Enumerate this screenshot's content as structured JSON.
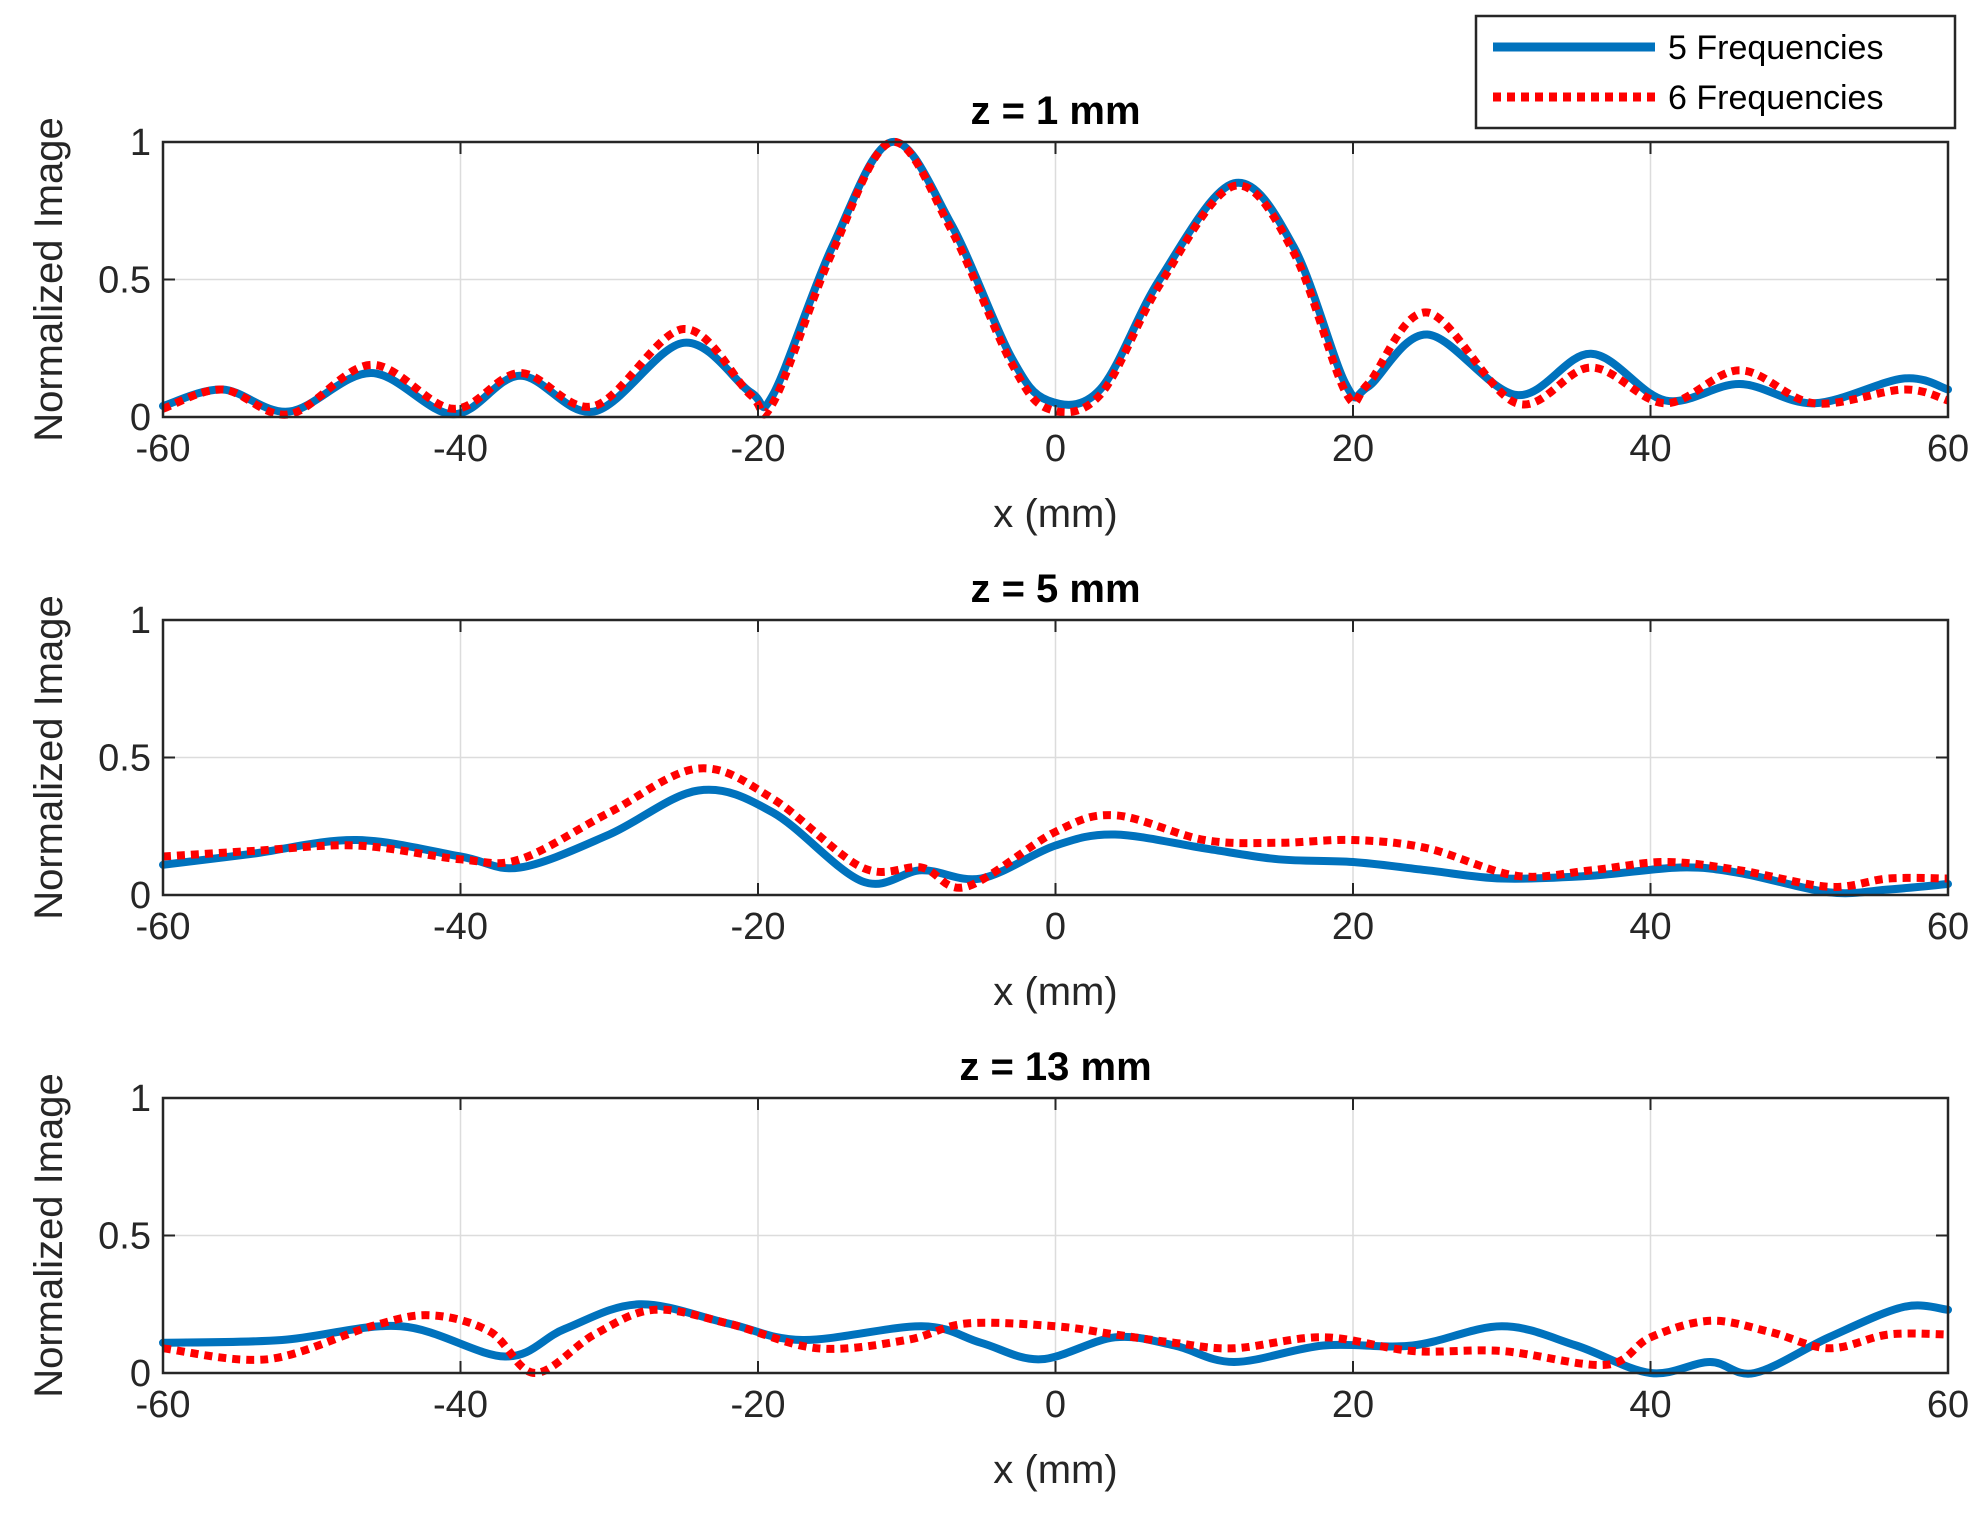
{
  "legend": {
    "location": "top-right",
    "entries": [
      {
        "label": "5 Frequencies",
        "color": "#0072BD",
        "style": "solid"
      },
      {
        "label": "6 Frequencies",
        "color": "#FF0000",
        "style": "dotted"
      }
    ]
  },
  "chart_data": [
    {
      "type": "line",
      "title": "z = 1 mm",
      "xlabel": "x (mm)",
      "ylabel": "Normalized Image",
      "xlim": [
        -60,
        60
      ],
      "ylim": [
        0,
        1
      ],
      "xticks": [
        "-60",
        "-40",
        "-20",
        "0",
        "20",
        "40",
        "60"
      ],
      "yticks": [
        "0",
        "0.5",
        "1"
      ],
      "grid": true,
      "series": [
        {
          "name": "5 Frequencies",
          "color": "#0072BD",
          "style": "solid",
          "x": [
            -60,
            -56,
            -51.5,
            -46,
            -40.5,
            -36,
            -31,
            -25,
            -20.5,
            -19,
            -15,
            -11,
            -7,
            -3,
            -0.5,
            3,
            7,
            12,
            16,
            19.5,
            21,
            25,
            31,
            36,
            41,
            46,
            51,
            57,
            60
          ],
          "y": [
            0.04,
            0.1,
            0.02,
            0.16,
            0.01,
            0.15,
            0.02,
            0.27,
            0.09,
            0.08,
            0.62,
            1.0,
            0.7,
            0.22,
            0.06,
            0.1,
            0.5,
            0.85,
            0.62,
            0.12,
            0.11,
            0.3,
            0.08,
            0.23,
            0.06,
            0.12,
            0.05,
            0.14,
            0.1
          ]
        },
        {
          "name": "6 Frequencies",
          "color": "#FF0000",
          "style": "dotted",
          "x": [
            -60,
            -56,
            -51.5,
            -46,
            -40.5,
            -36,
            -31,
            -25,
            -20.5,
            -19,
            -15,
            -11,
            -7,
            -3,
            -0.5,
            3,
            7,
            12,
            16,
            19.5,
            21,
            25,
            31,
            36,
            41,
            46,
            51,
            57,
            60
          ],
          "y": [
            0.03,
            0.1,
            0.01,
            0.19,
            0.03,
            0.16,
            0.04,
            0.32,
            0.08,
            0.05,
            0.6,
            1.0,
            0.68,
            0.2,
            0.03,
            0.08,
            0.48,
            0.84,
            0.6,
            0.09,
            0.12,
            0.38,
            0.05,
            0.18,
            0.05,
            0.17,
            0.05,
            0.1,
            0.06
          ]
        }
      ]
    },
    {
      "type": "line",
      "title": "z = 5 mm",
      "xlabel": "x (mm)",
      "ylabel": "Normalized Image",
      "xlim": [
        -60,
        60
      ],
      "ylim": [
        0,
        1
      ],
      "xticks": [
        "-60",
        "-40",
        "-20",
        "0",
        "20",
        "40",
        "60"
      ],
      "yticks": [
        "0",
        "0.5",
        "1"
      ],
      "grid": true,
      "series": [
        {
          "name": "5 Frequencies",
          "color": "#0072BD",
          "style": "solid",
          "x": [
            -60,
            -54,
            -47,
            -40,
            -36,
            -30,
            -24,
            -19,
            -13,
            -9,
            -5,
            0,
            4,
            10,
            15,
            20,
            25,
            30,
            36,
            42,
            46,
            52,
            56,
            60
          ],
          "y": [
            0.11,
            0.15,
            0.2,
            0.14,
            0.1,
            0.22,
            0.38,
            0.3,
            0.05,
            0.09,
            0.06,
            0.18,
            0.22,
            0.17,
            0.13,
            0.12,
            0.09,
            0.06,
            0.07,
            0.1,
            0.08,
            0.01,
            0.02,
            0.04
          ]
        },
        {
          "name": "6 Frequencies",
          "color": "#FF0000",
          "style": "dotted",
          "x": [
            -60,
            -54,
            -47,
            -40,
            -36,
            -30,
            -24,
            -19,
            -13,
            -9,
            -6,
            0,
            4,
            10,
            15,
            20,
            25,
            31,
            36,
            41,
            46,
            52,
            56,
            60
          ],
          "y": [
            0.14,
            0.16,
            0.18,
            0.13,
            0.13,
            0.3,
            0.46,
            0.35,
            0.1,
            0.1,
            0.03,
            0.23,
            0.29,
            0.2,
            0.19,
            0.2,
            0.17,
            0.07,
            0.09,
            0.12,
            0.09,
            0.03,
            0.06,
            0.06
          ]
        }
      ]
    },
    {
      "type": "line",
      "title": "z = 13 mm",
      "xlabel": "x (mm)",
      "ylabel": "Normalized Image",
      "xlim": [
        -60,
        60
      ],
      "ylim": [
        0,
        1
      ],
      "xticks": [
        "-60",
        "-40",
        "-20",
        "0",
        "20",
        "40",
        "60"
      ],
      "yticks": [
        "0",
        "0.5",
        "1"
      ],
      "grid": true,
      "series": [
        {
          "name": "5 Frequencies",
          "color": "#0072BD",
          "style": "solid",
          "x": [
            -60,
            -52,
            -44,
            -37,
            -33,
            -28,
            -22,
            -17,
            -9,
            -5,
            -1,
            4,
            8,
            12,
            18,
            24,
            30,
            35,
            40,
            44,
            47,
            52,
            57,
            60
          ],
          "y": [
            0.11,
            0.12,
            0.17,
            0.06,
            0.16,
            0.25,
            0.18,
            0.12,
            0.17,
            0.11,
            0.05,
            0.13,
            0.1,
            0.04,
            0.1,
            0.1,
            0.17,
            0.1,
            0.0,
            0.04,
            0.0,
            0.13,
            0.24,
            0.23
          ]
        },
        {
          "name": "6 Frequencies",
          "color": "#FF0000",
          "style": "dotted",
          "x": [
            -60,
            -53,
            -46,
            -42,
            -38,
            -35,
            -31,
            -27,
            -22,
            -16,
            -10,
            -6,
            0,
            4,
            8,
            12,
            18,
            24,
            30,
            37,
            40,
            44,
            48,
            52,
            56,
            60
          ],
          "y": [
            0.09,
            0.05,
            0.17,
            0.21,
            0.15,
            0.0,
            0.14,
            0.23,
            0.18,
            0.09,
            0.12,
            0.18,
            0.17,
            0.14,
            0.11,
            0.09,
            0.13,
            0.08,
            0.08,
            0.03,
            0.13,
            0.19,
            0.15,
            0.09,
            0.14,
            0.14
          ]
        }
      ]
    }
  ]
}
